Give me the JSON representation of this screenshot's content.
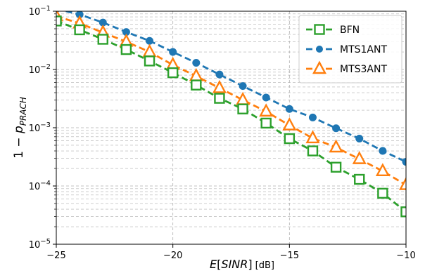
{
  "chart_data": {
    "type": "line",
    "title": "",
    "xlabel": "E[SINR] [dB]",
    "ylabel": "1 − p_PRACH",
    "xlim": [
      -25,
      -10
    ],
    "ylim": [
      1e-05,
      0.1
    ],
    "yscale": "log",
    "grid": true,
    "legend_position": "top-right",
    "x_ticks": [
      {
        "value": -25,
        "label": "−25"
      },
      {
        "value": -20,
        "label": "−20"
      },
      {
        "value": -15,
        "label": "−15"
      },
      {
        "value": -10,
        "label": "−10"
      }
    ],
    "y_ticks": [
      {
        "value": 1e-05,
        "base": "10",
        "exp": "−5"
      },
      {
        "value": 0.0001,
        "base": "10",
        "exp": "−4"
      },
      {
        "value": 0.001,
        "base": "10",
        "exp": "−3"
      },
      {
        "value": 0.01,
        "base": "10",
        "exp": "−2"
      },
      {
        "value": 0.1,
        "base": "10",
        "exp": "−1"
      }
    ],
    "series": [
      {
        "name": "BFN",
        "color": "#2ca02c",
        "marker": "square",
        "x": [
          -25,
          -24,
          -23,
          -22,
          -21,
          -20,
          -19,
          -18,
          -17,
          -16,
          -15,
          -14,
          -13,
          -12,
          -11,
          -10
        ],
        "y": [
          0.068,
          0.048,
          0.033,
          0.022,
          0.014,
          0.0088,
          0.0054,
          0.0032,
          0.0021,
          0.0012,
          0.00065,
          0.0004,
          0.00021,
          0.00013,
          7.5e-05,
          3.6e-05
        ]
      },
      {
        "name": "MTS1ANT",
        "color": "#1f77b4",
        "marker": "circle",
        "x": [
          -25,
          -24,
          -23,
          -22,
          -21,
          -20,
          -19,
          -18,
          -17,
          -16,
          -15,
          -14,
          -13,
          -12,
          -11,
          -10
        ],
        "y": [
          0.11,
          0.088,
          0.064,
          0.044,
          0.031,
          0.02,
          0.013,
          0.0082,
          0.0052,
          0.0033,
          0.0021,
          0.0015,
          0.00098,
          0.00065,
          0.0004,
          0.00026
        ]
      },
      {
        "name": "MTS3ANT",
        "color": "#ff7f0e",
        "marker": "triangle",
        "x": [
          -25,
          -24,
          -23,
          -22,
          -21,
          -20,
          -19,
          -18,
          -17,
          -16,
          -15,
          -14,
          -13,
          -12,
          -11,
          -10
        ],
        "y": [
          0.082,
          0.062,
          0.043,
          0.03,
          0.02,
          0.012,
          0.0077,
          0.0048,
          0.003,
          0.0019,
          0.0011,
          0.00066,
          0.00046,
          0.00029,
          0.00018,
          0.000104
        ]
      }
    ]
  }
}
